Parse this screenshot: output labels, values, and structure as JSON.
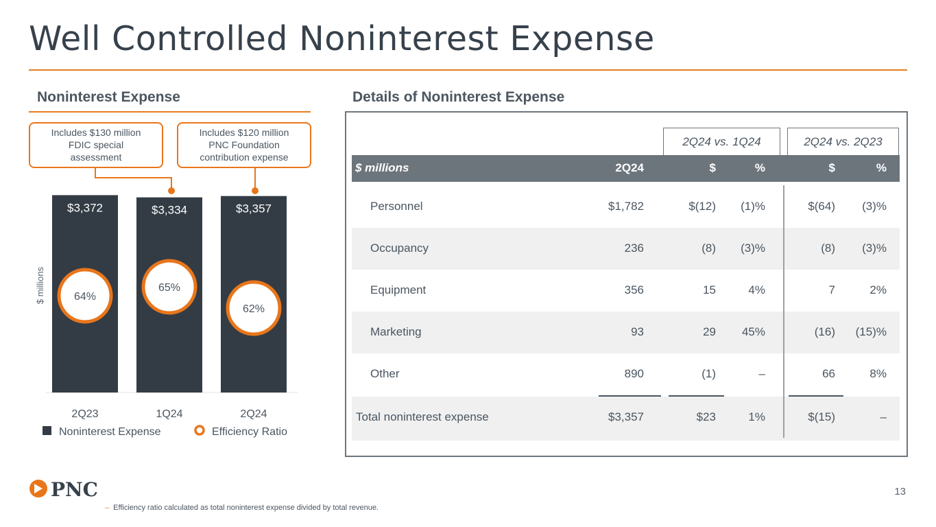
{
  "title": "Well Controlled Noninterest Expense",
  "left_heading": "Noninterest Expense",
  "right_heading": "Details of Noninterest Expense",
  "callouts": {
    "one": [
      "Includes $130 million",
      "FDIC special",
      "assessment"
    ],
    "two": [
      "Includes $120 million",
      "PNC Foundation",
      "contribution expense"
    ]
  },
  "colors": {
    "bar": "#333c45",
    "accent": "#e8761b",
    "rule": "#e67e22"
  },
  "chart_data": {
    "type": "bar",
    "ylabel": "$ millions",
    "categories": [
      "2Q23",
      "1Q24",
      "2Q24"
    ],
    "series": [
      {
        "name": "Noninterest Expense",
        "values": [
          3372,
          3334,
          3357
        ],
        "labels": [
          "$3,372",
          "$3,334",
          "$3,357"
        ]
      },
      {
        "name": "Efficiency Ratio",
        "values": [
          64,
          65,
          62
        ],
        "labels": [
          "64%",
          "65%",
          "62%"
        ]
      }
    ],
    "ylim": [
      0,
      3400
    ],
    "legend": [
      "Noninterest Expense",
      "Efficiency Ratio"
    ],
    "legend_position": "bottom"
  },
  "table": {
    "group_headers": [
      "2Q24 vs. 1Q24",
      "2Q24 vs. 2Q23"
    ],
    "columns": [
      "$ millions",
      "2Q24",
      "$",
      "%",
      "$",
      "%"
    ],
    "rows": [
      {
        "label": "Personnel",
        "values": [
          "$1,782",
          "$(12)",
          "(1)%",
          "$(64)",
          "(3)%"
        ]
      },
      {
        "label": "Occupancy",
        "values": [
          "236",
          "(8)",
          "(3)%",
          "(8)",
          "(3)%"
        ]
      },
      {
        "label": "Equipment",
        "values": [
          "356",
          "15",
          "4%",
          "7",
          "2%"
        ]
      },
      {
        "label": "Marketing",
        "values": [
          "93",
          "29",
          "45%",
          "(16)",
          "(15)%"
        ]
      },
      {
        "label": "Other",
        "values": [
          "890",
          "(1)",
          "–",
          "66",
          "8%"
        ]
      },
      {
        "label": "Total noninterest expense",
        "values": [
          "$3,357",
          "$23",
          "1%",
          "$(15)",
          "–"
        ]
      }
    ]
  },
  "logo_text": "PNC",
  "page_number": "13",
  "footnote": "Efficiency ratio calculated as total noninterest expense divided by total revenue.",
  "footnote_marker": "–"
}
